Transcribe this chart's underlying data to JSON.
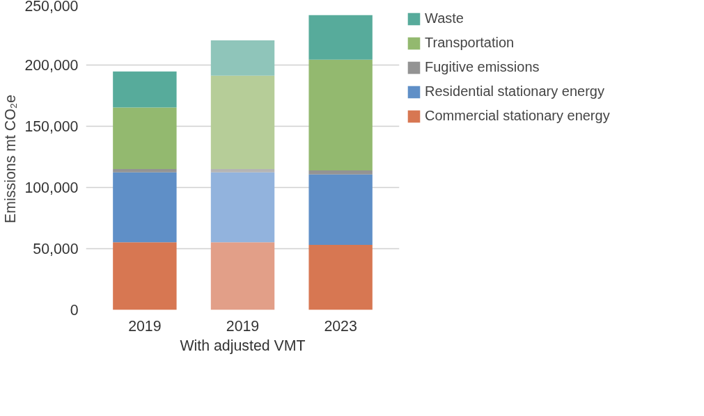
{
  "chart_data": {
    "type": "bar",
    "stacked": true,
    "ylabel": "Emissions  mt CO₂e",
    "categories": [
      "2019",
      "2019\nWith adjusted VMT",
      "2023"
    ],
    "series": [
      {
        "name": "Commercial stationary energy",
        "color": "#d77752",
        "colors": [
          "#d77752",
          "#e29f88",
          "#d77752"
        ],
        "values": [
          55300,
          55300,
          53100
        ]
      },
      {
        "name": "Residential stationary energy",
        "color": "#5f8fc7",
        "colors": [
          "#5f8fc7",
          "#92b3dd",
          "#5f8fc7"
        ],
        "values": [
          57000,
          57000,
          57500
        ]
      },
      {
        "name": "Fugitive emissions",
        "color": "#939393",
        "colors": [
          "#939393",
          "#b4b4b4",
          "#939393"
        ],
        "values": [
          2700,
          2700,
          3300
        ]
      },
      {
        "name": "Transportation",
        "color": "#93b96f",
        "colors": [
          "#93b96f",
          "#b6cd98",
          "#93b96f"
        ],
        "values": [
          50400,
          76400,
          90500
        ]
      },
      {
        "name": "Waste",
        "color": "#57ab9b",
        "colors": [
          "#57ab9b",
          "#8fc5ba",
          "#57ab9b"
        ],
        "values": [
          29300,
          28800,
          36400
        ]
      }
    ],
    "ylim": [
      0,
      250000
    ],
    "yticks": [
      {
        "value": 0,
        "label": "0"
      },
      {
        "value": 50000,
        "label": "50,000"
      },
      {
        "value": 100000,
        "label": "100,000"
      },
      {
        "value": 150000,
        "label": "150,000"
      },
      {
        "value": 200000,
        "label": "200,000"
      },
      {
        "value": 250000,
        "label": "250,000"
      }
    ],
    "grid": "y",
    "legend": "right"
  }
}
